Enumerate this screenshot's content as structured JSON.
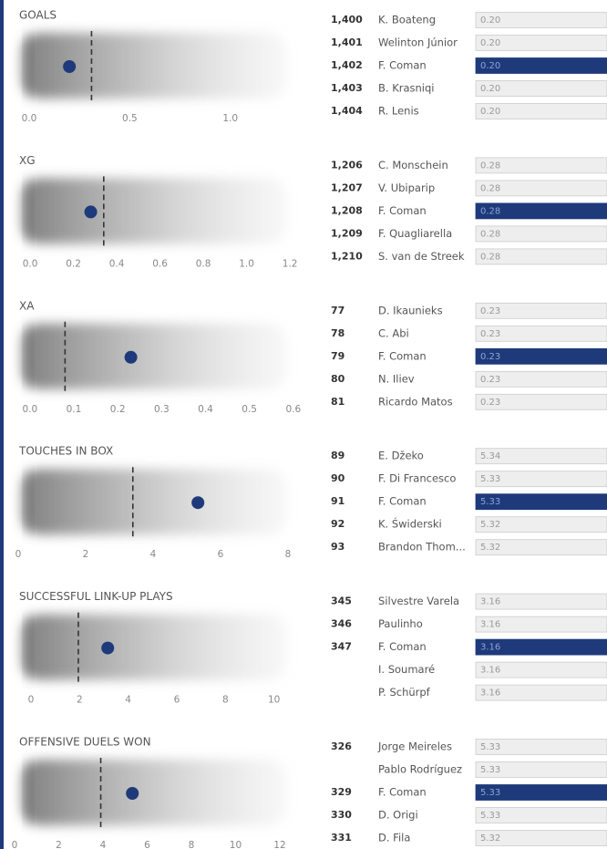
{
  "chart_data": [
    {
      "type": "scatter",
      "title": "GOALS",
      "xlim": [
        -0.077,
        1.35
      ],
      "xticks": [
        {
          "value": 0,
          "label": "0.0"
        },
        0.5,
        {
          "value": 1,
          "label": "1.0"
        }
      ],
      "reference_line": 0.31,
      "highlight": 2,
      "highlight_color": "#1f3a7a",
      "ranking": {
        "ranks": [
          "1,400",
          "1,401",
          "1,402",
          "1,403",
          "1,404"
        ],
        "names": [
          "K. Boateng",
          "Welinton Júnior",
          "F. Coman",
          "B. Krasniqi",
          "R. Lenis"
        ],
        "values": [
          0.2,
          0.2,
          0.2,
          0.2,
          0.2
        ],
        "value_labels": [
          "0.20",
          "0.20",
          "0.20",
          "0.20",
          "0.20"
        ]
      }
    },
    {
      "type": "scatter",
      "title": "XG",
      "xlim": [
        -0.076,
        1.25
      ],
      "xticks": [
        {
          "value": 0,
          "label": "0.0"
        },
        0.2,
        0.4,
        0.6,
        0.8,
        {
          "value": 1,
          "label": "1.0"
        },
        1.2
      ],
      "reference_line": 0.34,
      "highlight": 2,
      "highlight_color": "#1f3a7a",
      "ranking": {
        "ranks": [
          "1,206",
          "1,207",
          "1,208",
          "1,209",
          "1,210"
        ],
        "names": [
          "C. Monschein",
          "V. Ubiparip",
          "F. Coman",
          "F. Quagliarella",
          "S. van de Streek"
        ],
        "values": [
          0.28,
          0.28,
          0.28,
          0.28,
          0.28
        ],
        "value_labels": [
          "0.28",
          "0.28",
          "0.28",
          "0.28",
          "0.28"
        ]
      }
    },
    {
      "type": "scatter",
      "title": "XA",
      "xlim": [
        -0.037,
        0.617
      ],
      "xticks": [
        {
          "value": 0,
          "label": "0.0"
        },
        0.1,
        0.2,
        0.3,
        0.4,
        0.5,
        0.6
      ],
      "reference_line": 0.08,
      "highlight": 2,
      "highlight_color": "#1f3a7a",
      "ranking": {
        "ranks": [
          "77",
          "78",
          "79",
          "80",
          "81"
        ],
        "names": [
          "D. Ikaunieks",
          "C. Abi",
          "F. Coman",
          "N. Iliev",
          "Ricardo Matos"
        ],
        "values": [
          0.23,
          0.23,
          0.23,
          0.23,
          0.23
        ],
        "value_labels": [
          "0.23",
          "0.23",
          "0.23",
          "0.23",
          "0.23"
        ]
      }
    },
    {
      "type": "scatter",
      "title": "TOUCHES IN BOX",
      "xlim": [
        -0.135,
        8.38
      ],
      "xticks": [
        0,
        2,
        4,
        6,
        8
      ],
      "reference_line": 3.4,
      "highlight": 2,
      "highlight_color": "#1f3a7a",
      "ranking": {
        "ranks": [
          "89",
          "90",
          "91",
          "92",
          "93"
        ],
        "names": [
          "E. Džeko",
          "F. Di Francesco",
          "F. Coman",
          "K. Świderski",
          "Brandon Thom..."
        ],
        "values": [
          5.34,
          5.33,
          5.33,
          5.32,
          5.32
        ],
        "value_labels": [
          "5.34",
          "5.33",
          "5.33",
          "5.32",
          "5.32"
        ]
      }
    },
    {
      "type": "scatter",
      "title": "SUCCESSFUL LINK-UP PLAYS",
      "xlim": [
        -0.71,
        11.1
      ],
      "xticks": [
        0,
        2,
        4,
        6,
        8,
        10
      ],
      "reference_line": 1.95,
      "highlight": 2,
      "highlight_color": "#1f3a7a",
      "ranking": {
        "ranks": [
          "345",
          "346",
          "347",
          null,
          null
        ],
        "names": [
          "Silvestre Varela",
          "Paulinho",
          "F. Coman",
          "I. Soumaré",
          "P. Schürpf"
        ],
        "values": [
          3.16,
          3.16,
          3.16,
          3.16,
          3.16
        ],
        "value_labels": [
          "3.16",
          "3.16",
          "3.16",
          "3.16",
          "3.16"
        ]
      }
    },
    {
      "type": "scatter",
      "title": "OFFENSIVE DUELS WON",
      "xlim": [
        -0.04,
        12.95
      ],
      "xticks": [
        0,
        2,
        4,
        6,
        8,
        10,
        12
      ],
      "reference_line": 3.9,
      "highlight": 2,
      "highlight_color": "#1f3a7a",
      "ranking": {
        "ranks": [
          "326",
          null,
          "329",
          "330",
          "331"
        ],
        "names": [
          "Jorge Meireles",
          "Pablo Rodríguez",
          "F. Coman",
          "D. Origi",
          "D. Fila"
        ],
        "values": [
          5.33,
          5.33,
          5.33,
          5.33,
          5.32
        ],
        "value_labels": [
          "5.33",
          "5.33",
          "5.33",
          "5.33",
          "5.32"
        ]
      }
    }
  ]
}
